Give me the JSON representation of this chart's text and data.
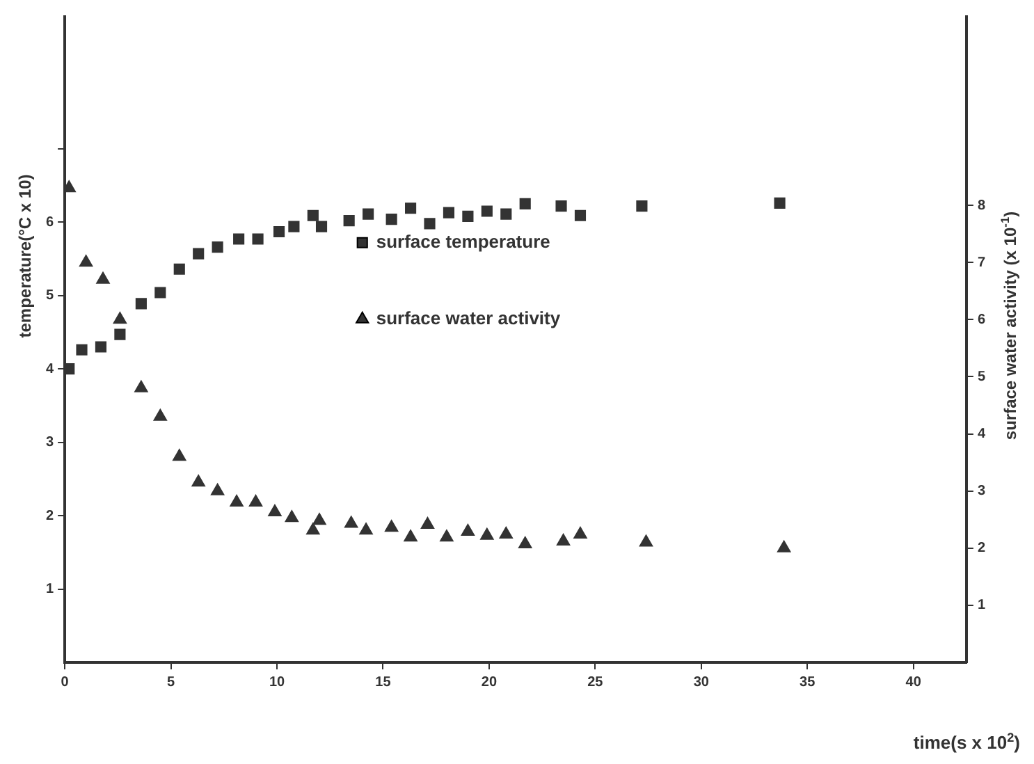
{
  "chart_data": {
    "type": "scatter",
    "xlabel": "time(s x 10$^{2}$)",
    "ylabel": "temperature(°C x 10)",
    "y2label": "surface water activity (x 10$^{-1}$)",
    "xlim": [
      0,
      42.5
    ],
    "xticks": [
      0,
      5,
      10,
      15,
      20,
      25,
      30,
      35,
      40
    ],
    "ylim": [
      0,
      8.8
    ],
    "yticks": [
      1,
      2,
      3,
      4,
      5,
      6,
      {
        "value": 7,
        "label": null
      }
    ],
    "y2lim": [
      0,
      11.3
    ],
    "y2ticks": [
      1,
      2,
      3,
      4,
      5,
      6,
      7,
      8
    ],
    "grid": false,
    "legend": "center",
    "series": [
      {
        "name": "surface temperature",
        "color": "#333333",
        "marker": "square",
        "x": [
          0.2,
          0.8,
          1.7,
          2.6,
          3.6,
          4.5,
          5.4,
          6.3,
          7.2,
          8.2,
          9.1,
          10.1,
          10.8,
          11.7,
          12.1,
          13.4,
          14.3,
          15.4,
          16.3,
          17.2,
          18.1,
          19.0,
          19.9,
          20.8,
          21.7,
          23.4,
          24.3,
          27.2,
          33.7
        ],
        "values": [
          4.0,
          4.26,
          4.3,
          4.47,
          4.89,
          5.04,
          5.36,
          5.57,
          5.66,
          5.77,
          5.77,
          5.87,
          5.94,
          6.09,
          5.94,
          6.02,
          6.11,
          6.04,
          6.19,
          5.98,
          6.13,
          6.08,
          6.15,
          6.11,
          6.25,
          6.22,
          6.09,
          6.22,
          6.26
        ]
      },
      {
        "name": "surface water activity",
        "color": "#333333",
        "marker": "triangle",
        "axis": "y2",
        "x": [
          0.2,
          1.0,
          1.8,
          2.6,
          3.6,
          4.5,
          5.4,
          6.3,
          7.2,
          8.1,
          9.0,
          9.9,
          10.7,
          11.7,
          12.0,
          13.5,
          14.2,
          15.4,
          16.3,
          17.1,
          18.0,
          19.0,
          19.9,
          20.8,
          21.7,
          23.5,
          24.3,
          27.4,
          33.9
        ],
        "values": [
          8.3,
          7.0,
          6.7,
          6.0,
          4.8,
          4.3,
          3.6,
          3.15,
          3.0,
          2.8,
          2.8,
          2.63,
          2.53,
          2.31,
          2.48,
          2.43,
          2.31,
          2.36,
          2.19,
          2.41,
          2.19,
          2.29,
          2.22,
          2.24,
          2.07,
          2.12,
          2.24,
          2.1,
          2.0
        ]
      }
    ]
  }
}
